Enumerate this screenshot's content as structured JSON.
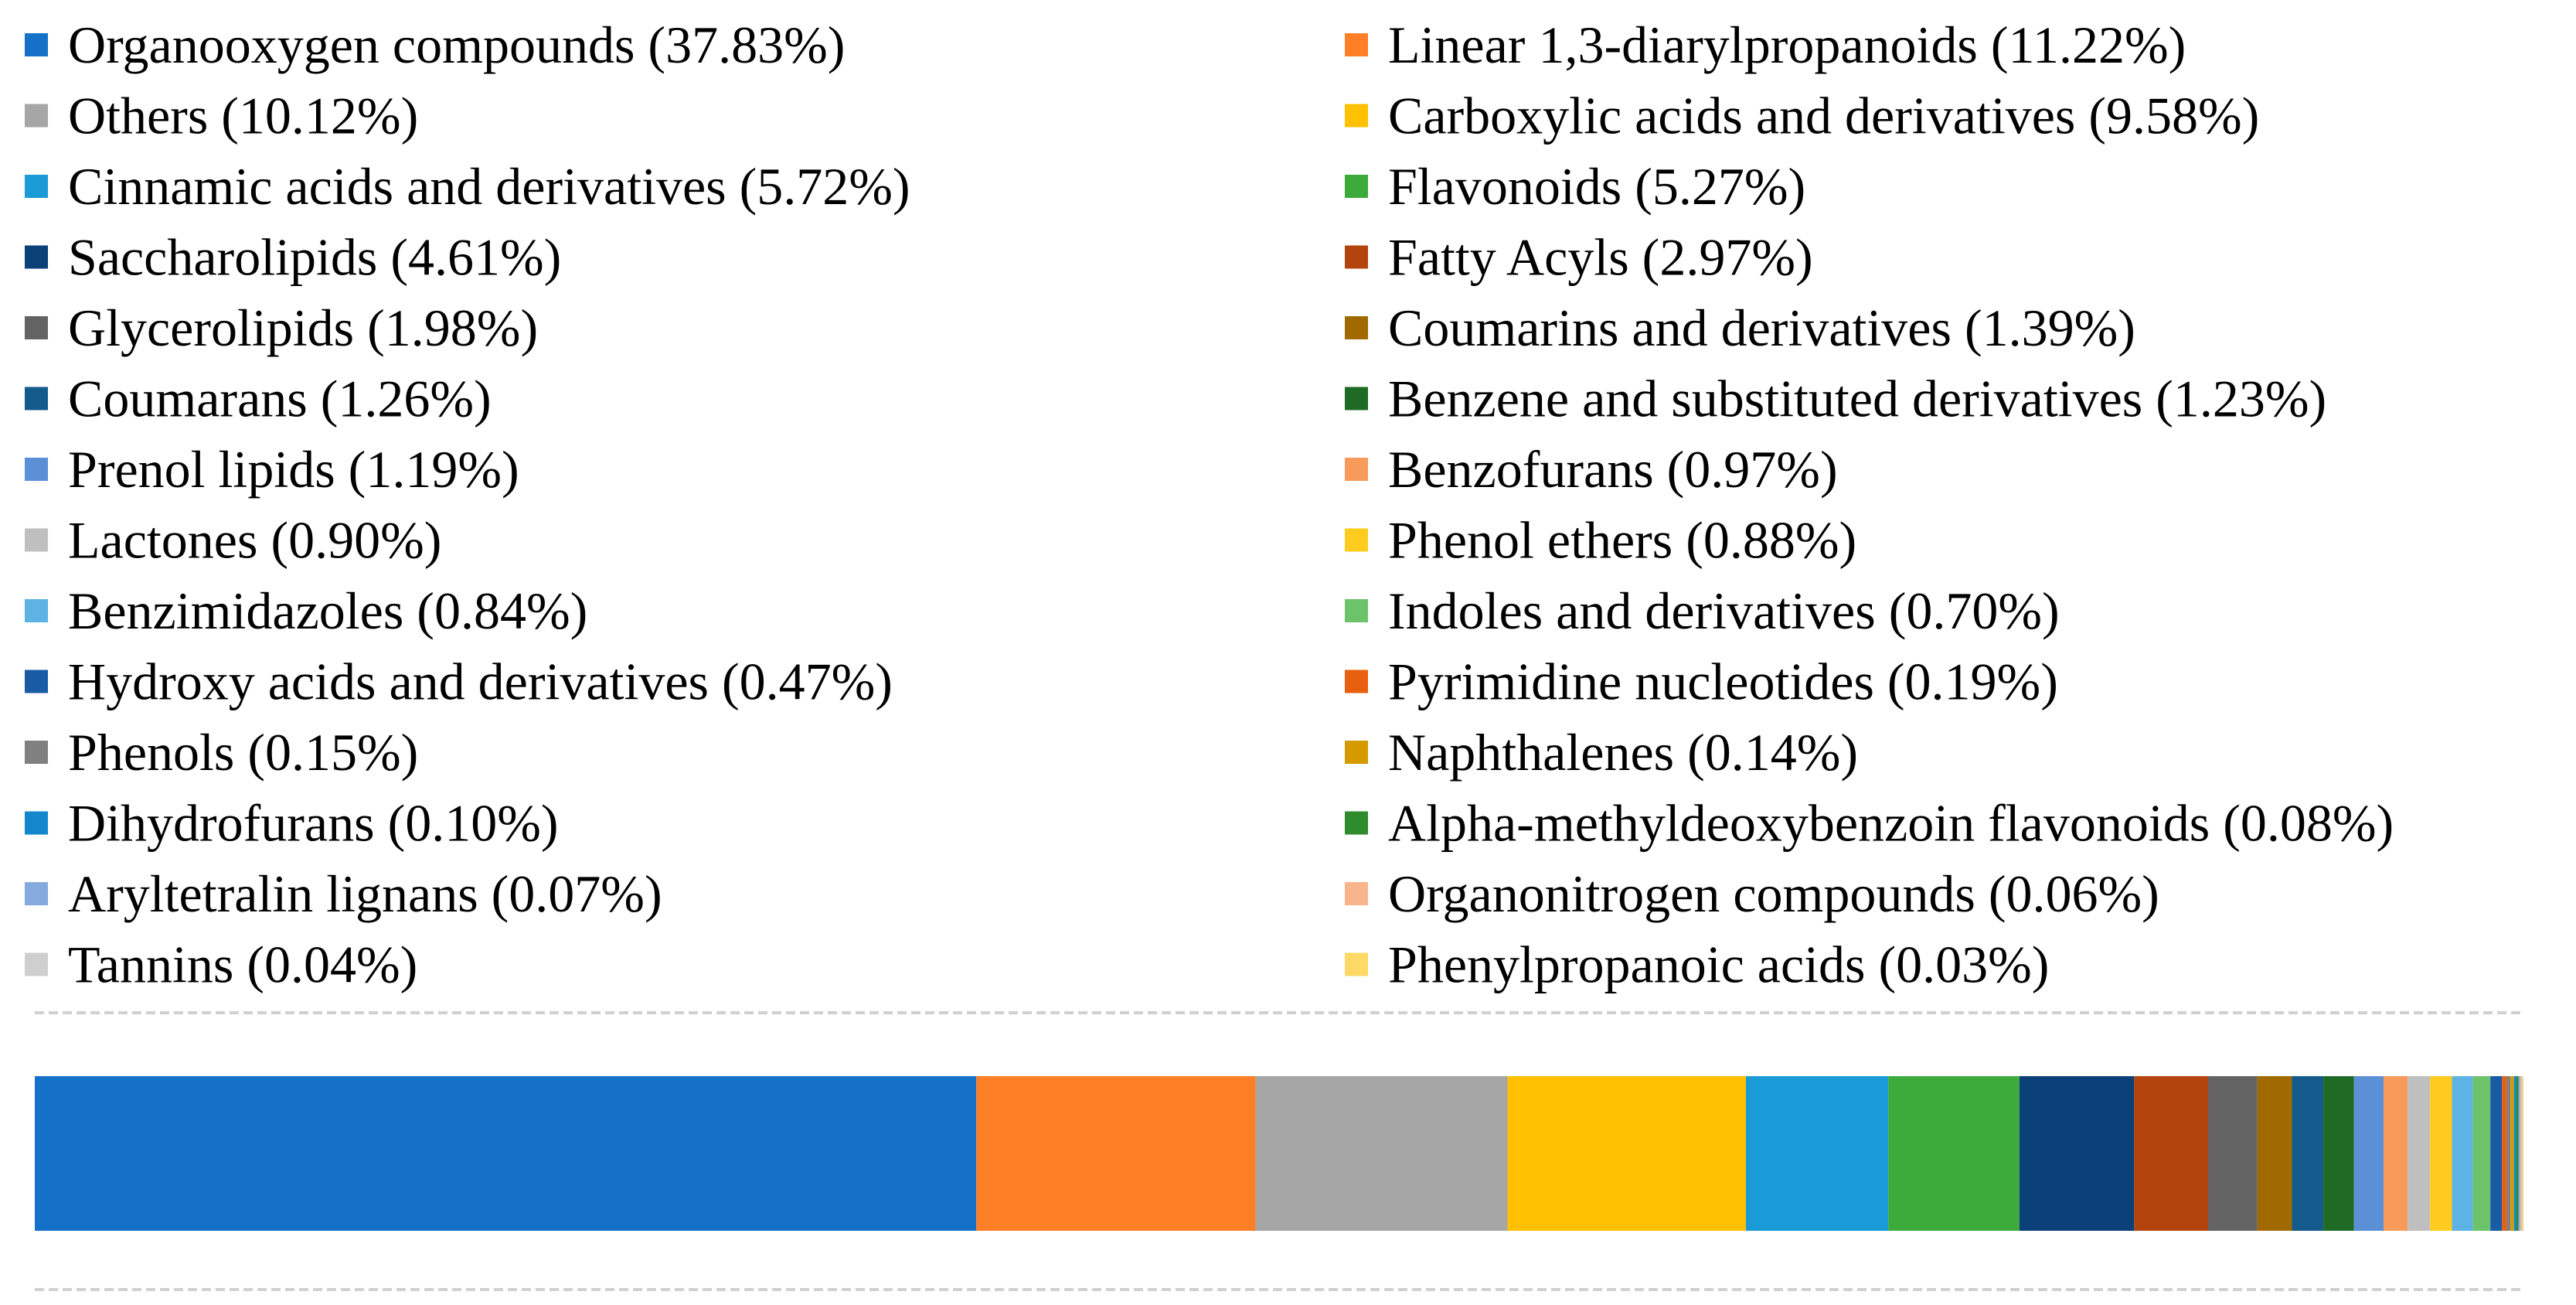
{
  "chart_data": {
    "type": "bar",
    "orientation": "horizontal-stacked-100",
    "legend_position": "top",
    "legend_columns": 2,
    "grid": false,
    "series": [
      {
        "name": "Organooxygen compounds",
        "label": "Organooxygen compounds (37.83%)",
        "value": 37.83,
        "color": "#1570C8"
      },
      {
        "name": "Linear 1,3-diarylpropanoids",
        "label": "Linear 1,3-diarylpropanoids (11.22%)",
        "value": 11.22,
        "color": "#FF7F27"
      },
      {
        "name": "Others",
        "label": "Others (10.12%)",
        "value": 10.12,
        "color": "#A6A6A6"
      },
      {
        "name": "Carboxylic acids and derivatives",
        "label": "Carboxylic acids and derivatives (9.58%)",
        "value": 9.58,
        "color": "#FFC000"
      },
      {
        "name": "Cinnamic acids and derivatives",
        "label": "Cinnamic acids and derivatives (5.72%)",
        "value": 5.72,
        "color": "#1B9AD8"
      },
      {
        "name": "Flavonoids",
        "label": "Flavonoids (5.27%)",
        "value": 5.27,
        "color": "#3CAB3C"
      },
      {
        "name": "Saccharolipids",
        "label": "Saccharolipids (4.61%)",
        "value": 4.61,
        "color": "#0A3F78"
      },
      {
        "name": "Fatty Acyls",
        "label": "Fatty Acyls (2.97%)",
        "value": 2.97,
        "color": "#B4440E"
      },
      {
        "name": "Glycerolipids",
        "label": "Glycerolipids (1.98%)",
        "value": 1.98,
        "color": "#636363"
      },
      {
        "name": "Coumarins and derivatives",
        "label": "Coumarins and derivatives (1.39%)",
        "value": 1.39,
        "color": "#A06A00"
      },
      {
        "name": "Coumarans",
        "label": "Coumarans (1.26%)",
        "value": 1.26,
        "color": "#145A8C"
      },
      {
        "name": "Benzene and substituted derivatives",
        "label": "Benzene and substituted derivatives (1.23%)",
        "value": 1.23,
        "color": "#1F6B25"
      },
      {
        "name": "Prenol lipids",
        "label": "Prenol lipids (1.19%)",
        "value": 1.19,
        "color": "#5B8FD6"
      },
      {
        "name": "Benzofurans",
        "label": "Benzofurans (0.97%)",
        "value": 0.97,
        "color": "#F79A5A"
      },
      {
        "name": "Lactones",
        "label": "Lactones (0.90%)",
        "value": 0.9,
        "color": "#BFBFBF"
      },
      {
        "name": "Phenol ethers",
        "label": "Phenol ethers (0.88%)",
        "value": 0.88,
        "color": "#FFCB1F"
      },
      {
        "name": "Benzimidazoles",
        "label": "Benzimidazoles (0.84%)",
        "value": 0.84,
        "color": "#5CB3E4"
      },
      {
        "name": "Indoles and derivatives",
        "label": "Indoles and derivatives (0.70%)",
        "value": 0.7,
        "color": "#6CC36A"
      },
      {
        "name": "Hydroxy acids and derivatives",
        "label": "Hydroxy acids and derivatives (0.47%)",
        "value": 0.47,
        "color": "#1A5BA6"
      },
      {
        "name": "Pyrimidine nucleotides",
        "label": "Pyrimidine nucleotides (0.19%)",
        "value": 0.19,
        "color": "#E8600F"
      },
      {
        "name": "Phenols",
        "label": "Phenols (0.15%)",
        "value": 0.15,
        "color": "#808080"
      },
      {
        "name": "Naphthalenes",
        "label": "Naphthalenes (0.14%)",
        "value": 0.14,
        "color": "#D49A00"
      },
      {
        "name": "Dihydrofurans",
        "label": "Dihydrofurans (0.10%)",
        "value": 0.1,
        "color": "#1287CC"
      },
      {
        "name": "Alpha-methyldeoxybenzoin flavonoids",
        "label": "Alpha-methyldeoxybenzoin flavonoids (0.08%)",
        "value": 0.08,
        "color": "#2E8B2E"
      },
      {
        "name": "Aryltetralin lignans",
        "label": "Aryltetralin lignans (0.07%)",
        "value": 0.07,
        "color": "#86A9DE"
      },
      {
        "name": "Organonitrogen compounds",
        "label": "Organonitrogen compounds (0.06%)",
        "value": 0.06,
        "color": "#F8B58C"
      },
      {
        "name": "Tannins",
        "label": "Tannins (0.04%)",
        "value": 0.04,
        "color": "#CFCFCF"
      },
      {
        "name": "Phenylpropanoic acids",
        "label": "Phenylpropanoic acids (0.03%)",
        "value": 0.03,
        "color": "#FFD966"
      }
    ]
  }
}
